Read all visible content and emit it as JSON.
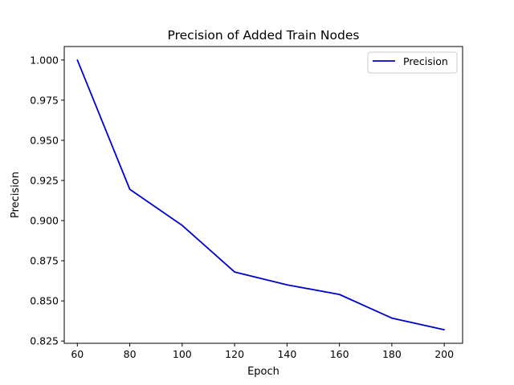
{
  "chart_data": {
    "type": "line",
    "title": "Precision of Added Train Nodes",
    "xlabel": "Epoch",
    "ylabel": "Precision",
    "x": [
      60,
      80,
      100,
      120,
      140,
      160,
      180,
      200
    ],
    "series": [
      {
        "name": "Precision",
        "color": "#0000cc",
        "values": [
          1.0,
          0.9195,
          0.897,
          0.868,
          0.86,
          0.854,
          0.8393,
          0.832
        ]
      }
    ],
    "xlim": [
      55,
      207
    ],
    "ylim": [
      0.8236,
      1.0084
    ],
    "xticks": [
      60,
      80,
      100,
      120,
      140,
      160,
      180,
      200
    ],
    "yticks": [
      0.825,
      0.85,
      0.875,
      0.9,
      0.925,
      0.95,
      0.975,
      1.0
    ],
    "xtick_labels": [
      "60",
      "80",
      "100",
      "120",
      "140",
      "160",
      "180",
      "200"
    ],
    "ytick_labels": [
      "0.825",
      "0.850",
      "0.875",
      "0.900",
      "0.925",
      "0.950",
      "0.975",
      "1.000"
    ],
    "grid": false,
    "legend": "top-right"
  }
}
